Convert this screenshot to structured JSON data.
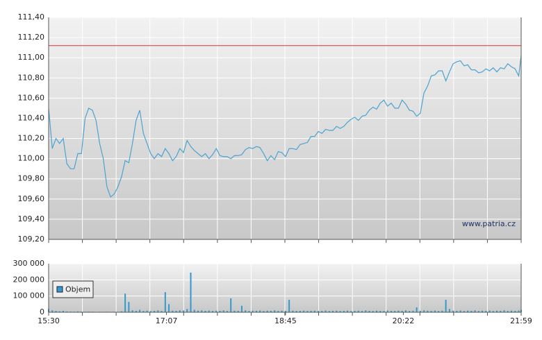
{
  "chart_data": [
    {
      "type": "line",
      "color": "#4aa3d0",
      "annotation": "www.patria.cz",
      "reference_line": {
        "value": 111.12,
        "color": "#e03030"
      },
      "xlim": [
        930,
        1319
      ],
      "ylim": [
        109.2,
        111.4
      ],
      "yticks": [
        {
          "value": 109.2,
          "label": "109,20"
        },
        {
          "value": 109.4,
          "label": "109,40"
        },
        {
          "value": 109.6,
          "label": "109,60"
        },
        {
          "value": 109.8,
          "label": "109,80"
        },
        {
          "value": 110.0,
          "label": "110,00"
        },
        {
          "value": 110.2,
          "label": "110,20"
        },
        {
          "value": 110.4,
          "label": "110,40"
        },
        {
          "value": 110.6,
          "label": "110,60"
        },
        {
          "value": 110.8,
          "label": "110,80"
        },
        {
          "value": 111.0,
          "label": "111,00"
        },
        {
          "value": 111.2,
          "label": "111,20"
        },
        {
          "value": 111.4,
          "label": "111,40"
        }
      ],
      "grid": true,
      "x": [
        930,
        933,
        936,
        939,
        942,
        945,
        948,
        951,
        954,
        957,
        960,
        963,
        966,
        969,
        972,
        975,
        978,
        981,
        984,
        987,
        990,
        993,
        996,
        999,
        1002,
        1005,
        1008,
        1011,
        1014,
        1017,
        1020,
        1023,
        1026,
        1029,
        1032,
        1035,
        1038,
        1041,
        1044,
        1047,
        1050,
        1053,
        1056,
        1059,
        1062,
        1065,
        1068,
        1071,
        1074,
        1077,
        1080,
        1083,
        1086,
        1089,
        1092,
        1095,
        1098,
        1101,
        1104,
        1107,
        1110,
        1113,
        1116,
        1119,
        1122,
        1125,
        1128,
        1131,
        1134,
        1137,
        1140,
        1143,
        1146,
        1149,
        1152,
        1155,
        1158,
        1161,
        1164,
        1167,
        1170,
        1173,
        1176,
        1179,
        1182,
        1185,
        1188,
        1191,
        1194,
        1197,
        1200,
        1203,
        1206,
        1209,
        1212,
        1215,
        1218,
        1221,
        1224,
        1227,
        1230,
        1233,
        1236,
        1239,
        1242,
        1245,
        1248,
        1251,
        1254,
        1257,
        1260,
        1263,
        1266,
        1269,
        1272,
        1275,
        1278,
        1281,
        1284,
        1287,
        1290,
        1293,
        1296,
        1299,
        1302,
        1305,
        1308,
        1311,
        1314,
        1317,
        1319
      ],
      "values": [
        110.5,
        110.1,
        110.2,
        110.15,
        110.2,
        109.95,
        109.9,
        109.9,
        110.05,
        110.05,
        110.4,
        110.5,
        110.48,
        110.38,
        110.15,
        110.0,
        109.72,
        109.62,
        109.65,
        109.72,
        109.82,
        109.98,
        109.96,
        110.15,
        110.38,
        110.48,
        110.25,
        110.15,
        110.05,
        110.0,
        110.05,
        110.02,
        110.1,
        110.05,
        109.98,
        110.02,
        110.1,
        110.06,
        110.18,
        110.12,
        110.08,
        110.05,
        110.02,
        110.05,
        110.0,
        110.04,
        110.1,
        110.03,
        110.02,
        110.02,
        110.0,
        110.03,
        110.03,
        110.04,
        110.09,
        110.11,
        110.1,
        110.12,
        110.11,
        110.05,
        109.98,
        110.03,
        109.99,
        110.07,
        110.06,
        110.02,
        110.1,
        110.1,
        110.09,
        110.14,
        110.15,
        110.16,
        110.22,
        110.22,
        110.27,
        110.25,
        110.29,
        110.28,
        110.28,
        110.32,
        110.3,
        110.32,
        110.36,
        110.39,
        110.41,
        110.38,
        110.42,
        110.43,
        110.48,
        110.51,
        110.49,
        110.55,
        110.58,
        110.52,
        110.55,
        110.5,
        110.5,
        110.58,
        110.54,
        110.48,
        110.47,
        110.42,
        110.45,
        110.65,
        110.72,
        110.82,
        110.83,
        110.87,
        110.87,
        110.77,
        110.86,
        110.94,
        110.96,
        110.97,
        110.92,
        110.93,
        110.88,
        110.88,
        110.85,
        110.86,
        110.89,
        110.87,
        110.9,
        110.86,
        110.9,
        110.89,
        110.94,
        110.91,
        110.89,
        110.82,
        111.02
      ]
    },
    {
      "type": "bar",
      "xlim": [
        930,
        1319
      ],
      "ylim": [
        0,
        300000
      ],
      "yticks": [
        0,
        {
          "value": 100000,
          "label": "100 000"
        },
        {
          "value": 200000,
          "label": "200 000"
        },
        {
          "value": 300000,
          "label": "300 000"
        }
      ],
      "xticks": [
        {
          "value": 930,
          "label": "15:30"
        },
        {
          "value": 1027,
          "label": "17:07"
        },
        {
          "value": 1125,
          "label": "18:45"
        },
        {
          "value": 1222,
          "label": "20:22"
        },
        {
          "value": 1319,
          "label": "21:59"
        }
      ],
      "grid": true,
      "legend": "top-left",
      "x": [
        930,
        933,
        936,
        939,
        942,
        945,
        948,
        951,
        954,
        957,
        960,
        963,
        966,
        969,
        972,
        975,
        978,
        981,
        984,
        987,
        990,
        993,
        996,
        999,
        1002,
        1005,
        1008,
        1011,
        1014,
        1017,
        1020,
        1023,
        1026,
        1029,
        1032,
        1035,
        1038,
        1041,
        1044,
        1047,
        1050,
        1053,
        1056,
        1059,
        1062,
        1065,
        1068,
        1071,
        1074,
        1077,
        1080,
        1083,
        1086,
        1089,
        1092,
        1095,
        1098,
        1101,
        1104,
        1107,
        1110,
        1113,
        1116,
        1119,
        1122,
        1125,
        1128,
        1131,
        1134,
        1137,
        1140,
        1143,
        1146,
        1149,
        1152,
        1155,
        1158,
        1161,
        1164,
        1167,
        1170,
        1173,
        1176,
        1179,
        1182,
        1185,
        1188,
        1191,
        1194,
        1197,
        1200,
        1203,
        1206,
        1209,
        1212,
        1215,
        1218,
        1221,
        1224,
        1227,
        1230,
        1233,
        1236,
        1239,
        1242,
        1245,
        1248,
        1251,
        1254,
        1257,
        1260,
        1263,
        1266,
        1269,
        1272,
        1275,
        1278,
        1281,
        1284,
        1287,
        1290,
        1293,
        1296,
        1299,
        1302,
        1305,
        1308,
        1311,
        1314,
        1317,
        1319
      ],
      "series": [
        {
          "name": "Objem",
          "color": "#3399cc",
          "values": [
            20000,
            12000,
            8000,
            6000,
            9000,
            5000,
            4000,
            3000,
            5000,
            4000,
            3000,
            4000,
            3000,
            2000,
            3000,
            2000,
            3000,
            2000,
            3000,
            2000,
            6000,
            115000,
            64000,
            12000,
            9000,
            15000,
            8000,
            10000,
            7000,
            9000,
            12000,
            8000,
            124000,
            50000,
            10000,
            9000,
            12000,
            11000,
            20000,
            245000,
            15000,
            10000,
            12000,
            9000,
            11000,
            8000,
            10000,
            9000,
            12000,
            8000,
            86000,
            10000,
            9000,
            40000,
            12000,
            8000,
            10000,
            9000,
            11000,
            8000,
            10000,
            9000,
            12000,
            8000,
            10000,
            9000,
            77000,
            10000,
            8000,
            9000,
            10000,
            8000,
            9000,
            10000,
            8000,
            9000,
            11000,
            8000,
            9000,
            10000,
            8000,
            9000,
            10000,
            8000,
            9000,
            10000,
            8000,
            12000,
            9000,
            8000,
            10000,
            9000,
            8000,
            11000,
            9000,
            8000,
            10000,
            9000,
            12000,
            8000,
            10000,
            30000,
            9000,
            12000,
            10000,
            9000,
            11000,
            8000,
            10000,
            77000,
            20000,
            10000,
            9000,
            11000,
            8000,
            10000,
            9000,
            12000,
            8000,
            10000,
            9000,
            11000,
            8000,
            10000,
            9000,
            12000,
            8000,
            10000,
            9000,
            11000,
            15000
          ]
        }
      ]
    }
  ]
}
